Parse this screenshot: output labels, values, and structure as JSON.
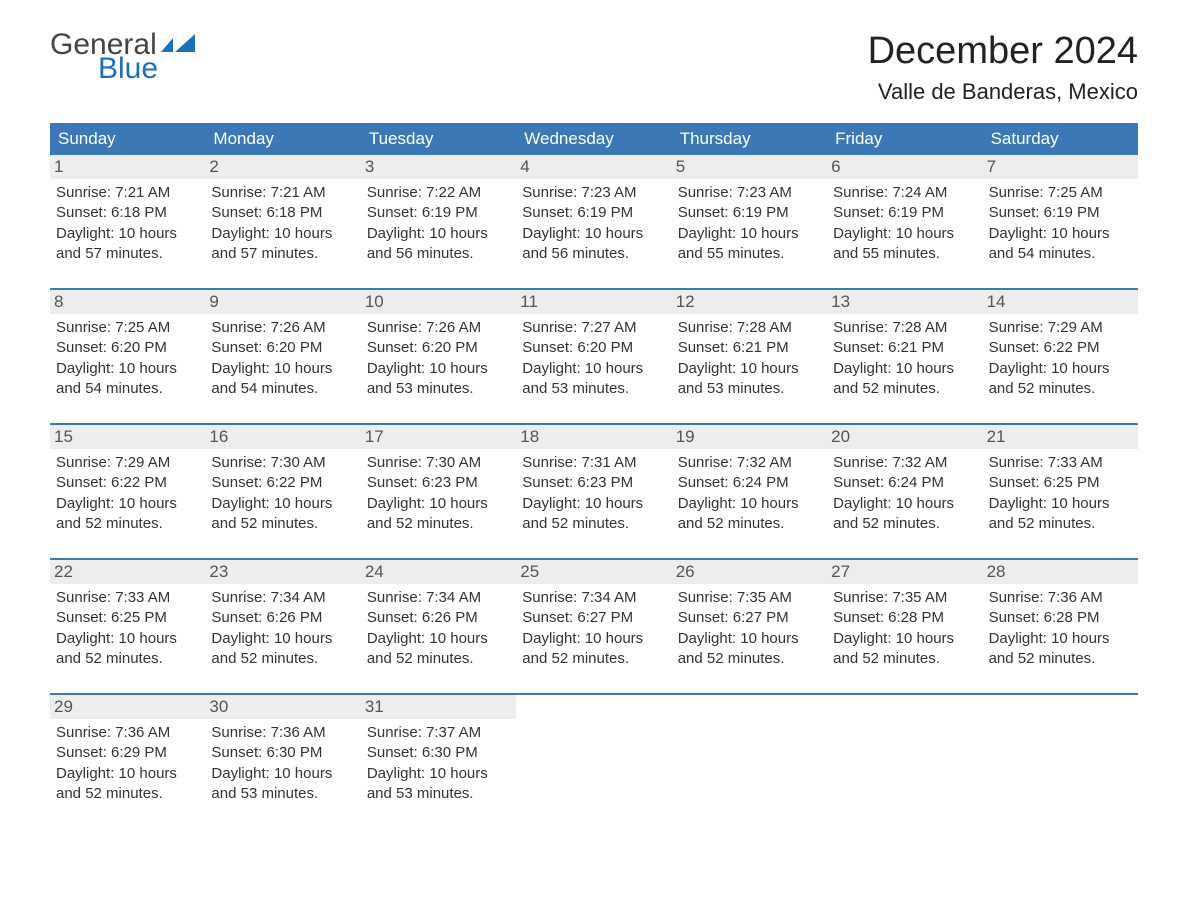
{
  "brand": {
    "general": "General",
    "blue": "Blue",
    "flag_color": "#1d6fb8"
  },
  "title": {
    "month": "December 2024",
    "location": "Valle de Banderas, Mexico"
  },
  "colors": {
    "header_bg": "#3b78b5",
    "header_text": "#ffffff",
    "row_sep": "#3b78b5",
    "day_num_bg": "#ededed",
    "day_num_text": "#555555",
    "body_text": "#333333",
    "page_bg": "#ffffff"
  },
  "typography": {
    "month_title_fontsize": 38,
    "location_fontsize": 22,
    "weekday_fontsize": 17,
    "daynum_fontsize": 17,
    "detail_fontsize": 15,
    "logo_fontsize": 30
  },
  "weekdays": [
    "Sunday",
    "Monday",
    "Tuesday",
    "Wednesday",
    "Thursday",
    "Friday",
    "Saturday"
  ],
  "weeks": [
    [
      {
        "n": "1",
        "sr": "Sunrise: 7:21 AM",
        "ss": "Sunset: 6:18 PM",
        "d1": "Daylight: 10 hours",
        "d2": "and 57 minutes."
      },
      {
        "n": "2",
        "sr": "Sunrise: 7:21 AM",
        "ss": "Sunset: 6:18 PM",
        "d1": "Daylight: 10 hours",
        "d2": "and 57 minutes."
      },
      {
        "n": "3",
        "sr": "Sunrise: 7:22 AM",
        "ss": "Sunset: 6:19 PM",
        "d1": "Daylight: 10 hours",
        "d2": "and 56 minutes."
      },
      {
        "n": "4",
        "sr": "Sunrise: 7:23 AM",
        "ss": "Sunset: 6:19 PM",
        "d1": "Daylight: 10 hours",
        "d2": "and 56 minutes."
      },
      {
        "n": "5",
        "sr": "Sunrise: 7:23 AM",
        "ss": "Sunset: 6:19 PM",
        "d1": "Daylight: 10 hours",
        "d2": "and 55 minutes."
      },
      {
        "n": "6",
        "sr": "Sunrise: 7:24 AM",
        "ss": "Sunset: 6:19 PM",
        "d1": "Daylight: 10 hours",
        "d2": "and 55 minutes."
      },
      {
        "n": "7",
        "sr": "Sunrise: 7:25 AM",
        "ss": "Sunset: 6:19 PM",
        "d1": "Daylight: 10 hours",
        "d2": "and 54 minutes."
      }
    ],
    [
      {
        "n": "8",
        "sr": "Sunrise: 7:25 AM",
        "ss": "Sunset: 6:20 PM",
        "d1": "Daylight: 10 hours",
        "d2": "and 54 minutes."
      },
      {
        "n": "9",
        "sr": "Sunrise: 7:26 AM",
        "ss": "Sunset: 6:20 PM",
        "d1": "Daylight: 10 hours",
        "d2": "and 54 minutes."
      },
      {
        "n": "10",
        "sr": "Sunrise: 7:26 AM",
        "ss": "Sunset: 6:20 PM",
        "d1": "Daylight: 10 hours",
        "d2": "and 53 minutes."
      },
      {
        "n": "11",
        "sr": "Sunrise: 7:27 AM",
        "ss": "Sunset: 6:20 PM",
        "d1": "Daylight: 10 hours",
        "d2": "and 53 minutes."
      },
      {
        "n": "12",
        "sr": "Sunrise: 7:28 AM",
        "ss": "Sunset: 6:21 PM",
        "d1": "Daylight: 10 hours",
        "d2": "and 53 minutes."
      },
      {
        "n": "13",
        "sr": "Sunrise: 7:28 AM",
        "ss": "Sunset: 6:21 PM",
        "d1": "Daylight: 10 hours",
        "d2": "and 52 minutes."
      },
      {
        "n": "14",
        "sr": "Sunrise: 7:29 AM",
        "ss": "Sunset: 6:22 PM",
        "d1": "Daylight: 10 hours",
        "d2": "and 52 minutes."
      }
    ],
    [
      {
        "n": "15",
        "sr": "Sunrise: 7:29 AM",
        "ss": "Sunset: 6:22 PM",
        "d1": "Daylight: 10 hours",
        "d2": "and 52 minutes."
      },
      {
        "n": "16",
        "sr": "Sunrise: 7:30 AM",
        "ss": "Sunset: 6:22 PM",
        "d1": "Daylight: 10 hours",
        "d2": "and 52 minutes."
      },
      {
        "n": "17",
        "sr": "Sunrise: 7:30 AM",
        "ss": "Sunset: 6:23 PM",
        "d1": "Daylight: 10 hours",
        "d2": "and 52 minutes."
      },
      {
        "n": "18",
        "sr": "Sunrise: 7:31 AM",
        "ss": "Sunset: 6:23 PM",
        "d1": "Daylight: 10 hours",
        "d2": "and 52 minutes."
      },
      {
        "n": "19",
        "sr": "Sunrise: 7:32 AM",
        "ss": "Sunset: 6:24 PM",
        "d1": "Daylight: 10 hours",
        "d2": "and 52 minutes."
      },
      {
        "n": "20",
        "sr": "Sunrise: 7:32 AM",
        "ss": "Sunset: 6:24 PM",
        "d1": "Daylight: 10 hours",
        "d2": "and 52 minutes."
      },
      {
        "n": "21",
        "sr": "Sunrise: 7:33 AM",
        "ss": "Sunset: 6:25 PM",
        "d1": "Daylight: 10 hours",
        "d2": "and 52 minutes."
      }
    ],
    [
      {
        "n": "22",
        "sr": "Sunrise: 7:33 AM",
        "ss": "Sunset: 6:25 PM",
        "d1": "Daylight: 10 hours",
        "d2": "and 52 minutes."
      },
      {
        "n": "23",
        "sr": "Sunrise: 7:34 AM",
        "ss": "Sunset: 6:26 PM",
        "d1": "Daylight: 10 hours",
        "d2": "and 52 minutes."
      },
      {
        "n": "24",
        "sr": "Sunrise: 7:34 AM",
        "ss": "Sunset: 6:26 PM",
        "d1": "Daylight: 10 hours",
        "d2": "and 52 minutes."
      },
      {
        "n": "25",
        "sr": "Sunrise: 7:34 AM",
        "ss": "Sunset: 6:27 PM",
        "d1": "Daylight: 10 hours",
        "d2": "and 52 minutes."
      },
      {
        "n": "26",
        "sr": "Sunrise: 7:35 AM",
        "ss": "Sunset: 6:27 PM",
        "d1": "Daylight: 10 hours",
        "d2": "and 52 minutes."
      },
      {
        "n": "27",
        "sr": "Sunrise: 7:35 AM",
        "ss": "Sunset: 6:28 PM",
        "d1": "Daylight: 10 hours",
        "d2": "and 52 minutes."
      },
      {
        "n": "28",
        "sr": "Sunrise: 7:36 AM",
        "ss": "Sunset: 6:28 PM",
        "d1": "Daylight: 10 hours",
        "d2": "and 52 minutes."
      }
    ],
    [
      {
        "n": "29",
        "sr": "Sunrise: 7:36 AM",
        "ss": "Sunset: 6:29 PM",
        "d1": "Daylight: 10 hours",
        "d2": "and 52 minutes."
      },
      {
        "n": "30",
        "sr": "Sunrise: 7:36 AM",
        "ss": "Sunset: 6:30 PM",
        "d1": "Daylight: 10 hours",
        "d2": "and 53 minutes."
      },
      {
        "n": "31",
        "sr": "Sunrise: 7:37 AM",
        "ss": "Sunset: 6:30 PM",
        "d1": "Daylight: 10 hours",
        "d2": "and 53 minutes."
      },
      null,
      null,
      null,
      null
    ]
  ]
}
